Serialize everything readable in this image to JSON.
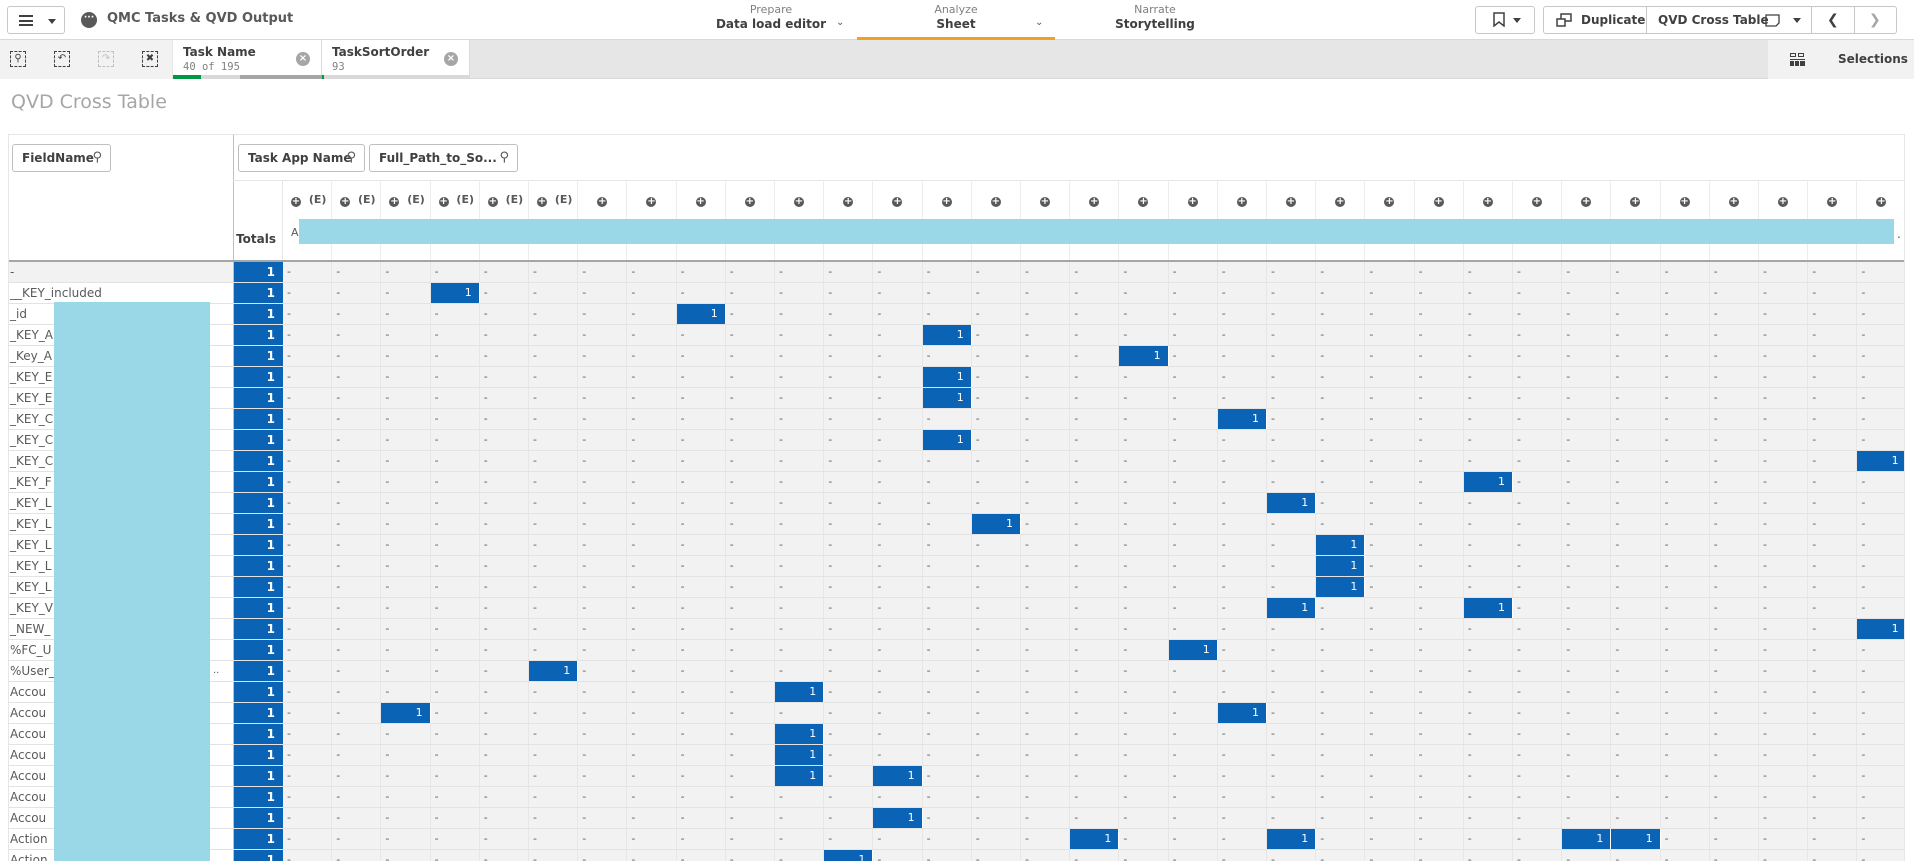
{
  "app": {
    "title": "QMC Tasks & QVD Output",
    "nav": [
      {
        "small": "Prepare",
        "label": "Data load editor"
      },
      {
        "small": "Analyze",
        "label": "Sheet"
      },
      {
        "small": "Narrate",
        "label": "Storytelling"
      }
    ],
    "toolbar": {
      "duplicate_label": "Duplicate",
      "sheet_name": "QVD Cross Table"
    }
  },
  "selections": {
    "chips": [
      {
        "name": "Task Name",
        "value": "40 of 195"
      },
      {
        "name": "TaskSortOrder",
        "value": "93"
      }
    ],
    "selections_label": "Selections"
  },
  "sheet": {
    "title": "QVD Cross Table"
  },
  "table": {
    "row_dimension": "FieldName",
    "column_dimensions": [
      "Task App Name",
      "Full_Path_to_So..."
    ],
    "totals_label": "Totals",
    "header_first_char": "A",
    "header_trailing": ".",
    "column_count": 33,
    "expanded_marker_cols": 6,
    "expand_glyph": "+",
    "expanded_label": "(E)",
    "empty_cell": "-",
    "rows": [
      {
        "label": "-",
        "total": "1",
        "on": []
      },
      {
        "label": "__KEY_included",
        "total": "1",
        "on": [
          3
        ]
      },
      {
        "label": "_id",
        "total": "1",
        "on": [
          8
        ]
      },
      {
        "label": "_KEY_A",
        "total": "1",
        "on": [
          13
        ]
      },
      {
        "label": "_Key_A",
        "total": "1",
        "on": [
          17
        ]
      },
      {
        "label": "_KEY_E",
        "total": "1",
        "on": [
          13
        ]
      },
      {
        "label": "_KEY_E",
        "total": "1",
        "on": [
          13
        ]
      },
      {
        "label": "_KEY_C",
        "total": "1",
        "on": [
          19
        ]
      },
      {
        "label": "_KEY_C",
        "total": "1",
        "on": [
          13
        ]
      },
      {
        "label": "_KEY_C",
        "total": "1",
        "on": [
          32
        ]
      },
      {
        "label": "_KEY_F",
        "total": "1",
        "on": [
          24
        ]
      },
      {
        "label": "_KEY_L",
        "total": "1",
        "on": [
          20
        ]
      },
      {
        "label": "_KEY_L",
        "total": "1",
        "on": [
          14
        ]
      },
      {
        "label": "_KEY_L",
        "total": "1",
        "on": [
          21
        ]
      },
      {
        "label": "_KEY_L",
        "total": "1",
        "on": [
          21
        ]
      },
      {
        "label": "_KEY_L",
        "total": "1",
        "on": [
          21
        ]
      },
      {
        "label": "_KEY_V",
        "total": "1",
        "on": [
          20,
          24
        ]
      },
      {
        "label": "_NEW_",
        "total": "1",
        "on": [
          32
        ]
      },
      {
        "label": "%FC_U",
        "total": "1",
        "on": [
          18
        ]
      },
      {
        "label": "%User_",
        "total": "1",
        "on": [
          5
        ],
        "ellipsis": true
      },
      {
        "label": "Accou",
        "total": "1",
        "on": [
          10
        ]
      },
      {
        "label": "Accou",
        "total": "1",
        "on": [
          2,
          19
        ]
      },
      {
        "label": "Accou",
        "total": "1",
        "on": [
          10
        ]
      },
      {
        "label": "Accou",
        "total": "1",
        "on": [
          10
        ]
      },
      {
        "label": "Accou",
        "total": "1",
        "on": [
          10,
          12
        ]
      },
      {
        "label": "Accou",
        "total": "1",
        "on": []
      },
      {
        "label": "Accou",
        "total": "1",
        "on": [
          12
        ]
      },
      {
        "label": "Action",
        "total": "1",
        "on": [
          16,
          20,
          26,
          27
        ]
      },
      {
        "label": "Action",
        "total": "1",
        "on": [
          11
        ]
      }
    ],
    "cell_value": "1"
  },
  "colors": {
    "accent_blue": "#0b63b6",
    "redaction_cyan": "#9ad8e8",
    "analyze_underline": "#f0a21f",
    "selection_green": "#009845"
  }
}
